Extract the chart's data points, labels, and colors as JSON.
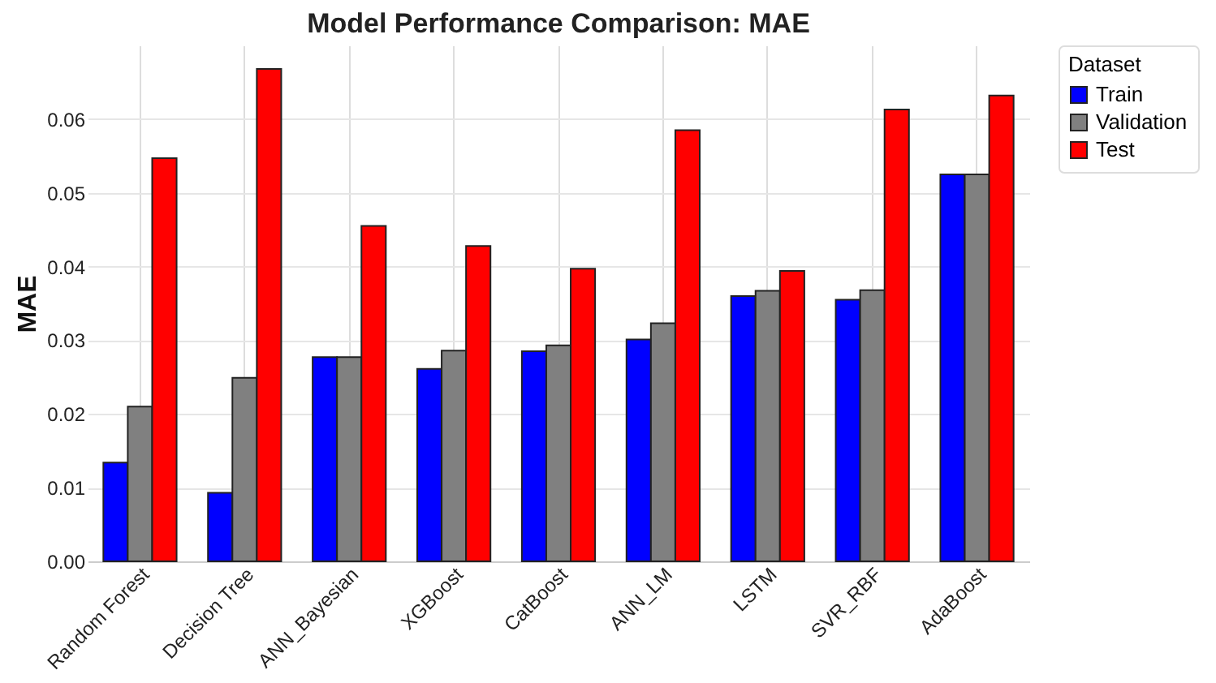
{
  "chart_data": {
    "type": "bar",
    "title": "Model Performance Comparison: MAE",
    "ylabel": "MAE",
    "legend_title": "Dataset",
    "categories": [
      "Random Forest",
      "Decision Tree",
      "ANN_Bayesian",
      "XGBoost",
      "CatBoost",
      "ANN_LM",
      "LSTM",
      "SVR_RBF",
      "AdaBoost"
    ],
    "series": [
      {
        "name": "Train",
        "color": "#0000ff",
        "values": [
          0.0134,
          0.0093,
          0.0277,
          0.0261,
          0.0285,
          0.0301,
          0.036,
          0.0355,
          0.0525
        ]
      },
      {
        "name": "Validation",
        "color": "#808080",
        "values": [
          0.021,
          0.0249,
          0.0277,
          0.0286,
          0.0293,
          0.0323,
          0.0367,
          0.0368,
          0.0525
        ]
      },
      {
        "name": "Test",
        "color": "#ff0000",
        "values": [
          0.0547,
          0.0668,
          0.0455,
          0.0428,
          0.0397,
          0.0585,
          0.0394,
          0.0613,
          0.0632
        ]
      }
    ],
    "ylim": [
      0,
      0.07
    ],
    "yticks": [
      {
        "value": 0,
        "label": "0.00"
      },
      {
        "value": 0.01,
        "label": "0.01"
      },
      {
        "value": 0.02,
        "label": "0.02"
      },
      {
        "value": 0.03,
        "label": "0.03"
      },
      {
        "value": 0.04,
        "label": "0.04"
      },
      {
        "value": 0.05,
        "label": "0.05"
      },
      {
        "value": 0.06,
        "label": "0.06"
      }
    ],
    "grid": true,
    "legend": "top right"
  }
}
